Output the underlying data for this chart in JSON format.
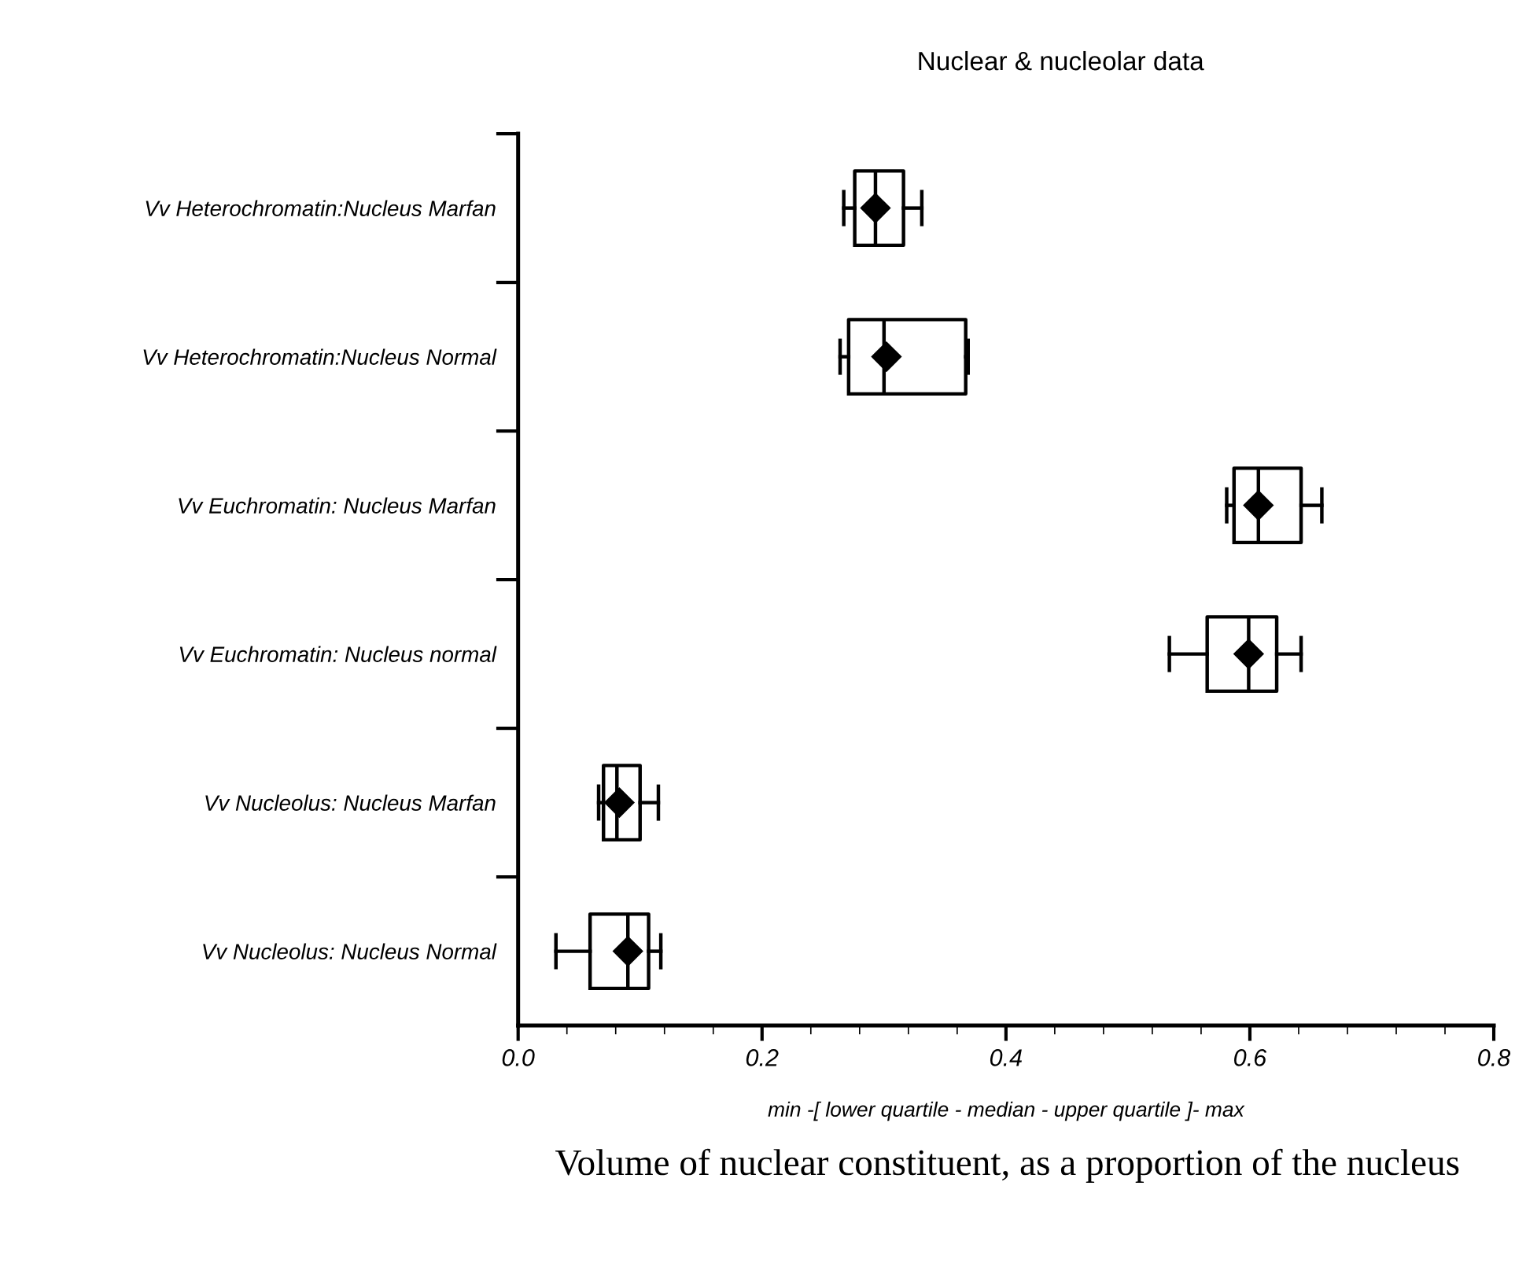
{
  "chart_data": {
    "type": "box",
    "orientation": "horizontal",
    "title": "Nuclear & nucleolar data",
    "xlabel": "min -[ lower quartile - median - upper quartile ]- max",
    "annotations": [
      "Volume of nuclear constituent, as a proportion of the nucleus"
    ],
    "categories": [
      "Vv Heterochromatin:Nucleus Marfan",
      "Vv Heterochromatin:Nucleus Normal",
      "Vv Euchromatin: Nucleus Marfan",
      "Vv Euchromatin: Nucleus normal",
      "Vv Nucleolus: Nucleus Marfan",
      "Vv Nucleolus: Nucleus Normal"
    ],
    "boxes": [
      {
        "low": 0.267,
        "q1": 0.276,
        "median": 0.293,
        "q3": 0.316,
        "high": 0.331,
        "mean": 0.293
      },
      {
        "low": 0.264,
        "q1": 0.271,
        "median": 0.3,
        "q3": 0.367,
        "high": 0.369,
        "mean": 0.302
      },
      {
        "low": 0.581,
        "q1": 0.587,
        "median": 0.607,
        "q3": 0.642,
        "high": 0.659,
        "mean": 0.607
      },
      {
        "low": 0.534,
        "q1": 0.565,
        "median": 0.599,
        "q3": 0.622,
        "high": 0.642,
        "mean": 0.599
      },
      {
        "low": 0.066,
        "q1": 0.07,
        "median": 0.081,
        "q3": 0.1,
        "high": 0.115,
        "mean": 0.083
      },
      {
        "low": 0.031,
        "q1": 0.059,
        "median": 0.09,
        "q3": 0.107,
        "high": 0.117,
        "mean": 0.09
      }
    ],
    "color": "#000000",
    "marker": "diamond",
    "grid": false,
    "xlim": [
      0,
      0.8
    ],
    "xticks": [
      {
        "value": 0,
        "label": "0.0"
      },
      {
        "value": 0.2,
        "label": "0.2"
      },
      {
        "value": 0.4,
        "label": "0.4"
      },
      {
        "value": 0.6,
        "label": "0.6"
      },
      {
        "value": 0.8,
        "label": "0.8"
      }
    ]
  }
}
